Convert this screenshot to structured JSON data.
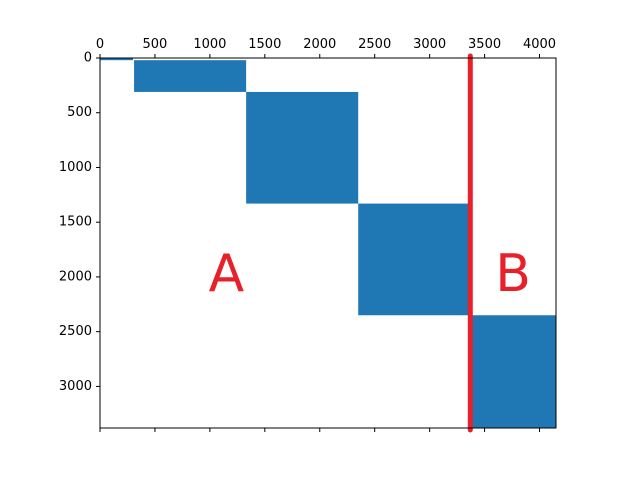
{
  "chart_data": {
    "type": "heatmap",
    "title": "",
    "xlabel": "",
    "ylabel": "",
    "xlim": [
      0,
      4150
    ],
    "ylim": [
      3380,
      0
    ],
    "x_axis_position": "top",
    "xticks": [
      0,
      500,
      1000,
      1500,
      2000,
      2500,
      3000,
      3500,
      4000
    ],
    "yticks": [
      0,
      500,
      1000,
      1500,
      2000,
      2500,
      3000
    ],
    "grid": false,
    "fill_color": "#1f77b4",
    "blocks": [
      {
        "x": [
          0,
          300
        ],
        "y": [
          0,
          20
        ]
      },
      {
        "x": [
          310,
          1330
        ],
        "y": [
          20,
          310
        ]
      },
      {
        "x": [
          1330,
          2350
        ],
        "y": [
          310,
          1330
        ]
      },
      {
        "x": [
          2350,
          3360
        ],
        "y": [
          1330,
          2350
        ]
      },
      {
        "x": [
          3380,
          4150
        ],
        "y": [
          2350,
          3380
        ]
      }
    ],
    "divider": {
      "x": 3370,
      "color": "#e8202a"
    },
    "annotations": [
      {
        "text": "A",
        "x": 1150,
        "y": 2000,
        "color": "#e8202a"
      },
      {
        "text": "B",
        "x": 3760,
        "y": 2000,
        "color": "#e8202a"
      }
    ]
  }
}
